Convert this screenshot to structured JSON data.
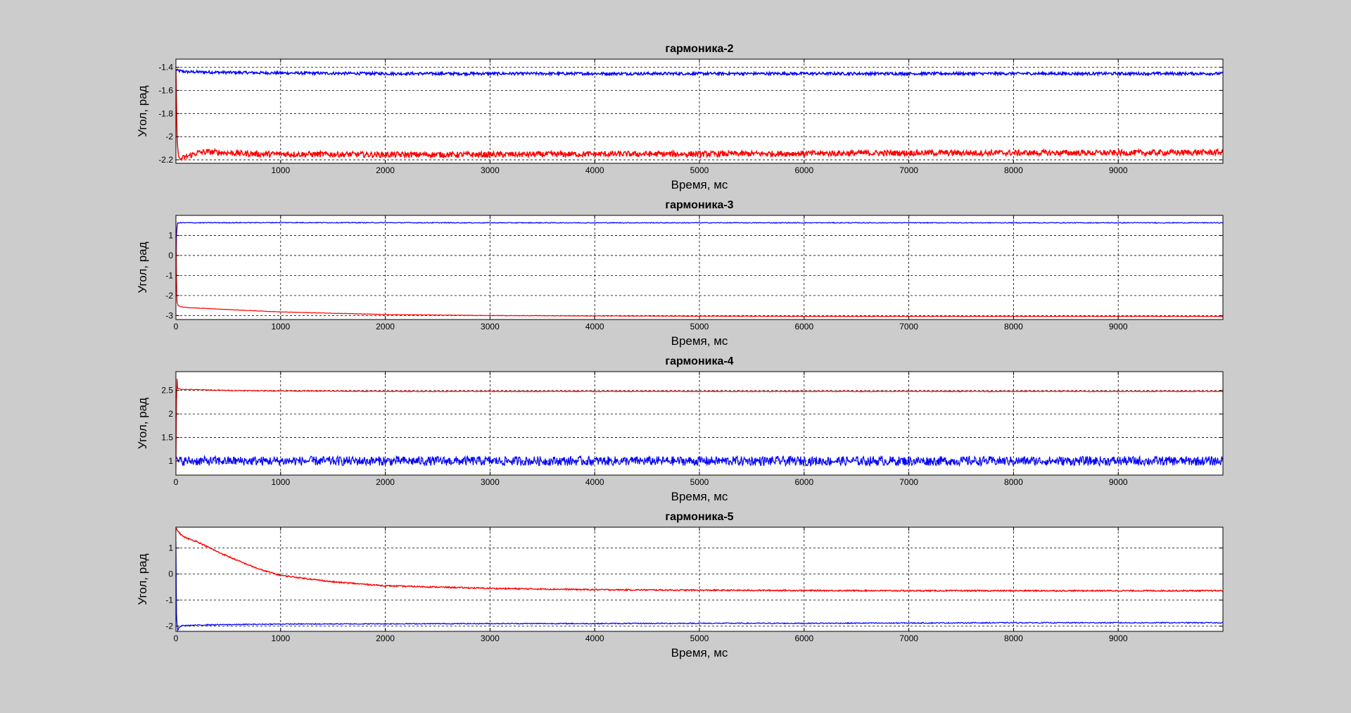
{
  "figure": {
    "background": "#cccccc",
    "axes_background": "#ffffff"
  },
  "colors": {
    "series_red": "#ff0000",
    "series_blue": "#0000ff",
    "grid": "#000000"
  },
  "chart_data": [
    {
      "type": "line",
      "title": "гармоника-2",
      "xlabel": "Время, мс",
      "ylabel": "Угол, рад",
      "xlim": [
        0,
        10000
      ],
      "ylim": [
        -2.23,
        -1.33
      ],
      "xticks": [
        1000,
        2000,
        3000,
        4000,
        5000,
        6000,
        7000,
        8000,
        9000
      ],
      "yticks": [
        -2.2,
        -2,
        -1.8,
        -1.6,
        -1.4
      ],
      "ytick_labels": [
        "-2.2",
        "-2",
        "-1.8",
        "-1.6",
        "-1.4"
      ],
      "grid": true,
      "series": [
        {
          "color": "#0000ff",
          "x": [
            0,
            20,
            100,
            500,
            1000,
            2000,
            3000,
            4000,
            5000,
            6000,
            7000,
            8000,
            9000,
            10000
          ],
          "y": [
            -1.42,
            -1.43,
            -1.44,
            -1.445,
            -1.45,
            -1.455,
            -1.455,
            -1.455,
            -1.455,
            -1.455,
            -1.455,
            -1.455,
            -1.455,
            -1.455
          ],
          "noise": 0.012,
          "width": 1.5
        },
        {
          "color": "#ff0000",
          "x": [
            0,
            10,
            30,
            80,
            200,
            300,
            500,
            800,
            1000,
            2000,
            3000,
            4000,
            5000,
            6000,
            7000,
            8000,
            9000,
            10000
          ],
          "y": [
            -1.4,
            -2.0,
            -2.2,
            -2.18,
            -2.14,
            -2.13,
            -2.14,
            -2.15,
            -2.15,
            -2.155,
            -2.155,
            -2.15,
            -2.15,
            -2.145,
            -2.14,
            -2.14,
            -2.14,
            -2.135
          ],
          "noise": 0.025,
          "width": 1.5
        }
      ]
    },
    {
      "type": "line",
      "title": "гармоника-3",
      "xlabel": "Время, мс",
      "ylabel": "Угол, рад",
      "xlim": [
        0,
        10000
      ],
      "ylim": [
        -3.2,
        2.0
      ],
      "xticks": [
        0,
        1000,
        2000,
        3000,
        4000,
        5000,
        6000,
        7000,
        8000,
        9000
      ],
      "yticks": [
        -3,
        -2,
        -1,
        0,
        1
      ],
      "ytick_labels": [
        "-3",
        "-2",
        "-1",
        "0",
        "1"
      ],
      "grid": true,
      "series": [
        {
          "color": "#0000ff",
          "x": [
            0,
            5,
            15,
            30,
            1000,
            3000,
            5000,
            10000
          ],
          "y": [
            -1.8,
            1.0,
            1.62,
            1.63,
            1.64,
            1.63,
            1.63,
            1.63
          ],
          "noise": 0.02,
          "width": 1.2
        },
        {
          "color": "#ff0000",
          "x": [
            0,
            5,
            10,
            20,
            40,
            100,
            500,
            1000,
            2000,
            3000,
            4000,
            5000,
            6000,
            7000,
            8000,
            9000,
            10000
          ],
          "y": [
            1.7,
            -1.0,
            -2.3,
            -2.5,
            -2.55,
            -2.6,
            -2.7,
            -2.82,
            -2.95,
            -3.0,
            -3.02,
            -3.03,
            -3.04,
            -3.04,
            -3.04,
            -3.04,
            -3.04
          ],
          "noise": 0.012,
          "width": 1.2
        }
      ]
    },
    {
      "type": "line",
      "title": "гармоника-4",
      "xlabel": "Время, мс",
      "ylabel": "Угол, рад",
      "xlim": [
        0,
        10000
      ],
      "ylim": [
        0.7,
        2.9
      ],
      "xticks": [
        0,
        1000,
        2000,
        3000,
        4000,
        5000,
        6000,
        7000,
        8000,
        9000
      ],
      "yticks": [
        1,
        1.5,
        2,
        2.5
      ],
      "ytick_labels": [
        "1",
        "1.5",
        "2",
        "2.5"
      ],
      "grid": true,
      "series": [
        {
          "color": "#0000ff",
          "x": [
            0,
            20,
            40,
            10000
          ],
          "y": [
            1.0,
            1.0,
            1.0,
            1.0
          ],
          "noise": 0.1,
          "width": 1.2
        },
        {
          "color": "#ff0000",
          "x": [
            0,
            8,
            15,
            30,
            100,
            500,
            1000,
            2000,
            5000,
            10000
          ],
          "y": [
            0.8,
            2.9,
            2.55,
            2.53,
            2.52,
            2.5,
            2.49,
            2.48,
            2.48,
            2.48
          ],
          "noise": 0.01,
          "width": 1.2
        }
      ]
    },
    {
      "type": "line",
      "title": "гармоника-5",
      "xlabel": "Время, мс",
      "ylabel": "Угол, рад",
      "xlim": [
        0,
        10000
      ],
      "ylim": [
        -2.2,
        1.8
      ],
      "xticks": [
        0,
        1000,
        2000,
        3000,
        4000,
        5000,
        6000,
        7000,
        8000,
        9000
      ],
      "yticks": [
        -2,
        -1,
        0,
        1
      ],
      "ytick_labels": [
        "-2",
        "-1",
        "0",
        "1"
      ],
      "grid": true,
      "series": [
        {
          "color": "#0000ff",
          "x": [
            0,
            5,
            15,
            30,
            60,
            300,
            1000,
            2000,
            3000,
            4000,
            5000,
            6000,
            7000,
            8000,
            9000,
            10000
          ],
          "y": [
            1.2,
            -1.5,
            -2.2,
            -2.05,
            -1.98,
            -1.95,
            -1.92,
            -1.91,
            -1.9,
            -1.9,
            -1.89,
            -1.89,
            -1.88,
            -1.87,
            -1.87,
            -1.87
          ],
          "noise": 0.02,
          "width": 1.2
        },
        {
          "color": "#ff0000",
          "x": [
            0,
            50,
            100,
            200,
            400,
            600,
            800,
            1000,
            1500,
            2000,
            3000,
            4000,
            5000,
            6000,
            7000,
            8000,
            9000,
            10000
          ],
          "y": [
            1.75,
            1.5,
            1.38,
            1.25,
            0.85,
            0.5,
            0.18,
            -0.05,
            -0.3,
            -0.45,
            -0.55,
            -0.6,
            -0.62,
            -0.63,
            -0.64,
            -0.64,
            -0.64,
            -0.64
          ],
          "noise": 0.025,
          "width": 1.4
        }
      ]
    }
  ]
}
